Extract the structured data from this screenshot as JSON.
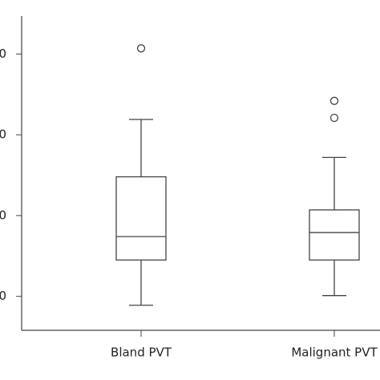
{
  "chart_data": {
    "type": "box",
    "categories": [
      "Bland PVT",
      "Malignant PVT"
    ],
    "boxes": [
      {
        "whislo": 8.9,
        "q1": 14.5,
        "med": 17.4,
        "q3": 24.8,
        "whishi": 31.9,
        "fliers": [
          40.7
        ]
      },
      {
        "whislo": 10.1,
        "q1": 14.5,
        "med": 17.9,
        "q3": 20.7,
        "whishi": 27.2,
        "fliers": [
          34.2,
          32.1
        ]
      }
    ],
    "color": "#444444",
    "ylim": [
      5.8,
      44.7
    ],
    "yticks": [
      {
        "value": 10,
        "label": "0"
      },
      {
        "value": 20,
        "label": "0"
      },
      {
        "value": 30,
        "label": "0"
      },
      {
        "value": 40,
        "label": "0"
      }
    ]
  }
}
